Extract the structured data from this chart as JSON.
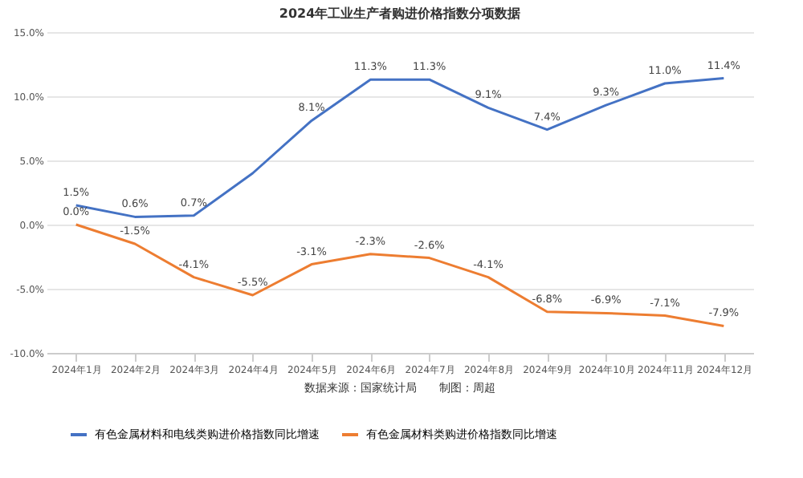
{
  "chart_data": {
    "type": "line",
    "title": "2024年工业生产者购进价格指数分项数据",
    "categories": [
      "2024年1月",
      "2024年2月",
      "2024年3月",
      "2024年4月",
      "2024年5月",
      "2024年6月",
      "2024年7月",
      "2024年8月",
      "2024年9月",
      "2024年10月",
      "2024年11月",
      "2024年12月"
    ],
    "series": [
      {
        "name": "有色金属材料和电线类购进价格指数同比增速",
        "color": "#4472c4",
        "values": [
          1.5,
          0.6,
          0.7,
          4.0,
          8.1,
          11.3,
          11.3,
          9.1,
          7.4,
          9.3,
          11.0,
          11.4
        ],
        "value_labels": [
          "1.5%",
          "0.6%",
          "0.7%",
          null,
          "8.1%",
          "11.3%",
          "11.3%",
          "9.1%",
          "7.4%",
          "9.3%",
          "11.0%",
          "11.4%"
        ]
      },
      {
        "name": "有色金属材料类购进价格指数同比增速",
        "color": "#ed7d31",
        "values": [
          0.0,
          -1.5,
          -4.1,
          -5.5,
          -3.1,
          -2.3,
          -2.6,
          -4.1,
          -6.8,
          -6.9,
          -7.1,
          -7.9
        ],
        "value_labels": [
          "0.0%",
          "-1.5%",
          "-4.1%",
          "-5.5%",
          "-3.1%",
          "-2.3%",
          "-2.6%",
          "-4.1%",
          "-6.8%",
          "-6.9%",
          "-7.1%",
          "-7.9%"
        ]
      }
    ],
    "ylim": [
      -10,
      15
    ],
    "yticks": [
      {
        "value": -10,
        "label": "-10.0%"
      },
      {
        "value": -5,
        "label": "-5.0%"
      },
      {
        "value": 0,
        "label": "0.0%"
      },
      {
        "value": 5,
        "label": "5.0%"
      },
      {
        "value": 10,
        "label": "10.0%"
      },
      {
        "value": 15,
        "label": "15.0%"
      }
    ],
    "grid": "y",
    "legend": "bottom",
    "marker": "none",
    "line_style": "solid",
    "annotations": [
      "数据来源：国家统计局　　制图：周超"
    ]
  }
}
